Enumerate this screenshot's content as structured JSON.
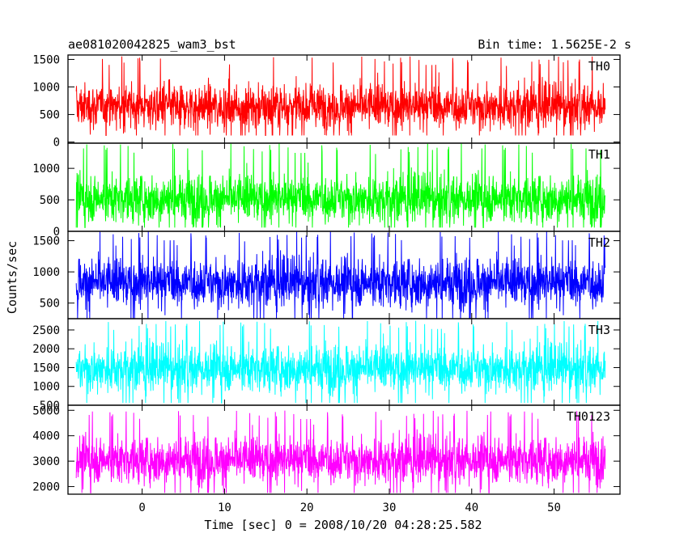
{
  "header": {
    "title": "ae081020042825_wam3_bst",
    "bin_time": "Bin time: 1.5625E-2 s"
  },
  "chart_data": {
    "type": "line",
    "title": "ae081020042825_wam3_bst",
    "subtitle": "Bin time: 1.5625E-2 s",
    "xlabel": "Time [sec] 0 = 2008/10/20 04:28:25.582",
    "ylabel": "Counts/sec",
    "xlim": [
      -9,
      58
    ],
    "x_ticks": [
      0,
      10,
      20,
      30,
      40,
      50
    ],
    "x_range_data": [
      -8,
      56.2
    ],
    "panels": [
      {
        "name": "TH0",
        "color": "#ff0000",
        "ylim": [
          -20,
          1580
        ],
        "y_ticks": [
          0,
          500,
          1000,
          1500
        ],
        "mean": 650,
        "min": 120,
        "max": 1560
      },
      {
        "name": "TH1",
        "color": "#00ff00",
        "ylim": [
          0,
          1400
        ],
        "y_ticks": [
          0,
          500,
          1000
        ],
        "mean": 520,
        "min": 60,
        "max": 1400
      },
      {
        "name": "TH2",
        "color": "#0000ff",
        "ylim": [
          250,
          1650
        ],
        "y_ticks": [
          500,
          1000,
          1500
        ],
        "mean": 830,
        "min": 250,
        "max": 1650
      },
      {
        "name": "TH3",
        "color": "#00ffff",
        "ylim": [
          500,
          2800
        ],
        "y_ticks": [
          500,
          1000,
          1500,
          2000,
          2500
        ],
        "mean": 1480,
        "min": 560,
        "max": 2750
      },
      {
        "name": "TH0123",
        "color": "#ff00ff",
        "ylim": [
          1700,
          5200
        ],
        "y_ticks": [
          2000,
          3000,
          4000,
          5000
        ],
        "mean": 3050,
        "min": 1750,
        "max": 5000
      }
    ]
  }
}
